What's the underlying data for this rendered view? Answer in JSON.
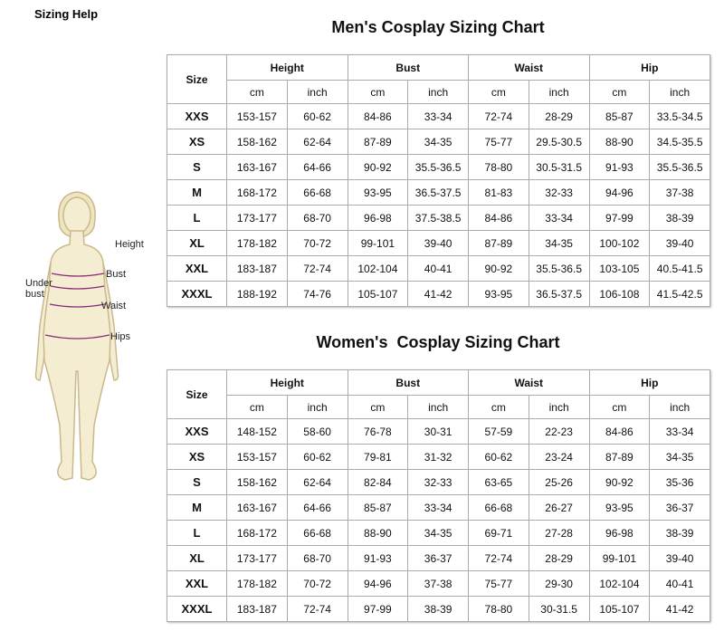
{
  "header": {
    "title": "Sizing Help"
  },
  "figure": {
    "labels": [
      "Height",
      "Bust",
      "Under bust",
      "Waist",
      "Hips"
    ]
  },
  "tables": [
    {
      "title": "Men's Cosplay Sizing Chart",
      "size_label": "Size",
      "groups": [
        "Height",
        "Bust",
        "Waist",
        "Hip"
      ],
      "units": [
        "cm",
        "inch",
        "cm",
        "inch",
        "cm",
        "inch",
        "cm",
        "inch"
      ],
      "rows": [
        [
          "XXS",
          "153-157",
          "60-62",
          "84-86",
          "33-34",
          "72-74",
          "28-29",
          "85-87",
          "33.5-34.5"
        ],
        [
          "XS",
          "158-162",
          "62-64",
          "87-89",
          "34-35",
          "75-77",
          "29.5-30.5",
          "88-90",
          "34.5-35.5"
        ],
        [
          "S",
          "163-167",
          "64-66",
          "90-92",
          "35.5-36.5",
          "78-80",
          "30.5-31.5",
          "91-93",
          "35.5-36.5"
        ],
        [
          "M",
          "168-172",
          "66-68",
          "93-95",
          "36.5-37.5",
          "81-83",
          "32-33",
          "94-96",
          "37-38"
        ],
        [
          "L",
          "173-177",
          "68-70",
          "96-98",
          "37.5-38.5",
          "84-86",
          "33-34",
          "97-99",
          "38-39"
        ],
        [
          "XL",
          "178-182",
          "70-72",
          "99-101",
          "39-40",
          "87-89",
          "34-35",
          "100-102",
          "39-40"
        ],
        [
          "XXL",
          "183-187",
          "72-74",
          "102-104",
          "40-41",
          "90-92",
          "35.5-36.5",
          "103-105",
          "40.5-41.5"
        ],
        [
          "XXXL",
          "188-192",
          "74-76",
          "105-107",
          "41-42",
          "93-95",
          "36.5-37.5",
          "106-108",
          "41.5-42.5"
        ]
      ]
    },
    {
      "title": "Women's  Cosplay Sizing Chart",
      "size_label": "Size",
      "groups": [
        "Height",
        "Bust",
        "Waist",
        "Hip"
      ],
      "units": [
        "cm",
        "inch",
        "cm",
        "inch",
        "cm",
        "inch",
        "cm",
        "inch"
      ],
      "rows": [
        [
          "XXS",
          "148-152",
          "58-60",
          "76-78",
          "30-31",
          "57-59",
          "22-23",
          "84-86",
          "33-34"
        ],
        [
          "XS",
          "153-157",
          "60-62",
          "79-81",
          "31-32",
          "60-62",
          "23-24",
          "87-89",
          "34-35"
        ],
        [
          "S",
          "158-162",
          "62-64",
          "82-84",
          "32-33",
          "63-65",
          "25-26",
          "90-92",
          "35-36"
        ],
        [
          "M",
          "163-167",
          "64-66",
          "85-87",
          "33-34",
          "66-68",
          "26-27",
          "93-95",
          "36-37"
        ],
        [
          "L",
          "168-172",
          "66-68",
          "88-90",
          "34-35",
          "69-71",
          "27-28",
          "96-98",
          "38-39"
        ],
        [
          "XL",
          "173-177",
          "68-70",
          "91-93",
          "36-37",
          "72-74",
          "28-29",
          "99-101",
          "39-40"
        ],
        [
          "XXL",
          "178-182",
          "70-72",
          "94-96",
          "37-38",
          "75-77",
          "29-30",
          "102-104",
          "40-41"
        ],
        [
          "XXXL",
          "183-187",
          "72-74",
          "97-99",
          "38-39",
          "78-80",
          "30-31.5",
          "105-107",
          "41-42"
        ]
      ]
    }
  ]
}
